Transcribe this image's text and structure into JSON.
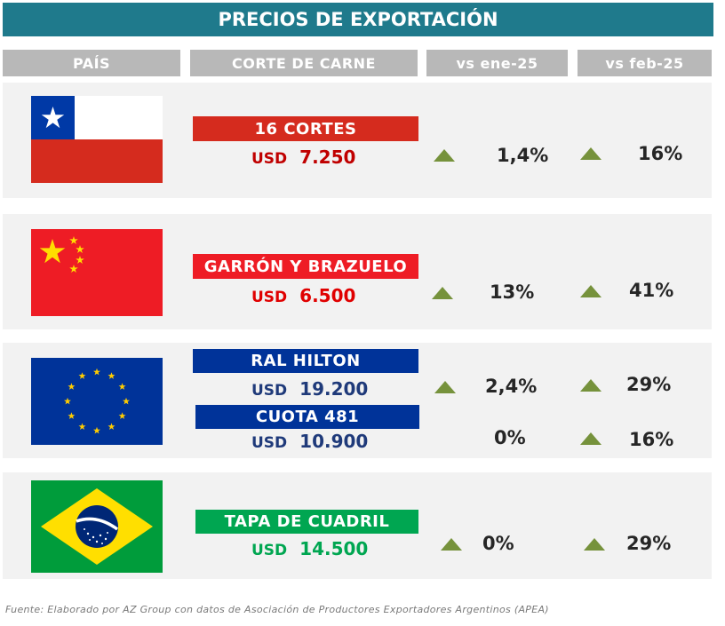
{
  "title": "PRECIOS DE EXPORTACIÓN",
  "headers": {
    "pais": "PAÍS",
    "corte": "CORTE DE CARNE",
    "vs_ene": "vs  ene-25",
    "vs_feb": "vs feb-25"
  },
  "colors": {
    "title_bg": "#1f7a8c",
    "header_bg": "#b8b8b8",
    "row_bg": "#f2f2f2",
    "up_arrow": "#76923c",
    "chile_red": "#d52b1e",
    "china_red": "#ee1c25",
    "eu_blue": "#003399",
    "brazil_green": "#009c3b"
  },
  "rows": [
    {
      "country_flag": "chile-flag",
      "cut": "16 CORTES",
      "currency": "USD",
      "price": "7.250",
      "vs_ene": "1,4%",
      "vs_feb": "16%",
      "vs_ene_trend": "up-arrow-icon",
      "vs_feb_trend": "up-arrow-icon"
    },
    {
      "country_flag": "china-flag",
      "cut": "GARRÓN Y BRAZUELO",
      "currency": "USD",
      "price": "6.500",
      "vs_ene": "13%",
      "vs_feb": "41%",
      "vs_ene_trend": "up-arrow-icon",
      "vs_feb_trend": "up-arrow-icon"
    },
    {
      "country_flag": "eu-flag",
      "cut": "RAL HILTON",
      "currency": "USD",
      "price": "19.200",
      "vs_ene": "2,4%",
      "vs_feb": "29%",
      "vs_ene_trend": "up-arrow-icon",
      "vs_feb_trend": "up-arrow-icon",
      "cut2": "CUOTA 481",
      "currency2": "USD",
      "price2": "10.900",
      "vs_ene2": "0%",
      "vs_feb2": "16%",
      "vs_feb2_trend": "up-arrow-icon"
    },
    {
      "country_flag": "brazil-flag",
      "cut": "TAPA DE CUADRIL",
      "currency": "USD",
      "price": "14.500",
      "vs_ene": "0%",
      "vs_feb": "29%",
      "vs_ene_trend": "up-arrow-icon",
      "vs_feb_trend": "up-arrow-icon"
    }
  ],
  "footnote": "Fuente: Elaborado por AZ Group con datos de Asociación de Productores Exportadores Argentinos (APEA)"
}
